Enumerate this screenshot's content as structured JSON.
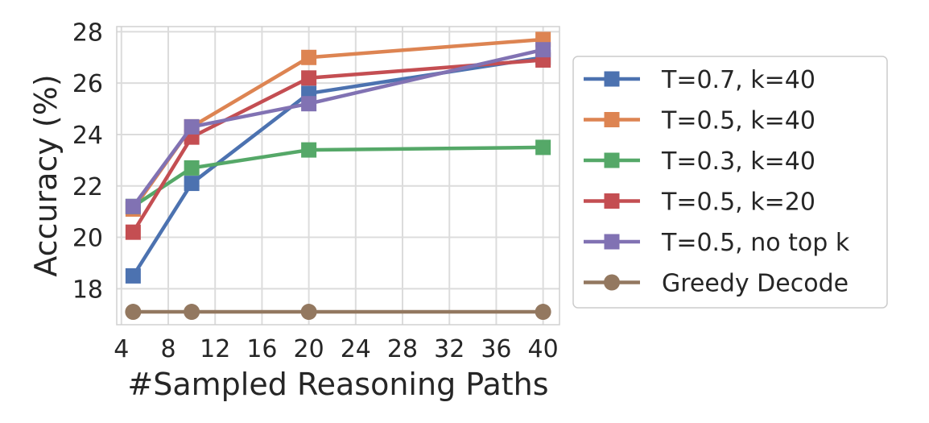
{
  "chart_data": {
    "type": "line",
    "title": "",
    "xlabel": "#Sampled Reasoning Paths",
    "ylabel": "Accuracy (%)",
    "xlim": [
      3.6,
      41.4
    ],
    "ylim": [
      16.6,
      28.2
    ],
    "xticks": [
      4,
      8,
      12,
      16,
      20,
      24,
      28,
      32,
      36,
      40
    ],
    "yticks": [
      18,
      20,
      22,
      24,
      26,
      28
    ],
    "grid": true,
    "legend_position": "right-outside",
    "series": [
      {
        "name": "T=0.7, k=40",
        "color": "#4c72b0",
        "marker": "square",
        "x": [
          5,
          10,
          20,
          40
        ],
        "y": [
          18.5,
          22.1,
          25.6,
          27.0
        ]
      },
      {
        "name": "T=0.5, k=40",
        "color": "#dd8452",
        "marker": "square",
        "x": [
          5,
          10,
          20,
          40
        ],
        "y": [
          21.1,
          24.3,
          27.0,
          27.7
        ]
      },
      {
        "name": "T=0.3, k=40",
        "color": "#55a868",
        "marker": "square",
        "x": [
          5,
          10,
          20,
          40
        ],
        "y": [
          21.2,
          22.7,
          23.4,
          23.5
        ]
      },
      {
        "name": "T=0.5, k=20",
        "color": "#c44e52",
        "marker": "square",
        "x": [
          5,
          10,
          20,
          40
        ],
        "y": [
          20.2,
          23.9,
          26.2,
          26.9
        ]
      },
      {
        "name": "T=0.5, no top k",
        "color": "#8172b3",
        "marker": "square",
        "x": [
          5,
          10,
          20,
          40
        ],
        "y": [
          21.2,
          24.3,
          25.2,
          27.3
        ]
      },
      {
        "name": "Greedy Decode",
        "color": "#937860",
        "marker": "circle",
        "x": [
          5,
          10,
          20,
          40
        ],
        "y": [
          17.1,
          17.1,
          17.1,
          17.1
        ]
      }
    ]
  }
}
